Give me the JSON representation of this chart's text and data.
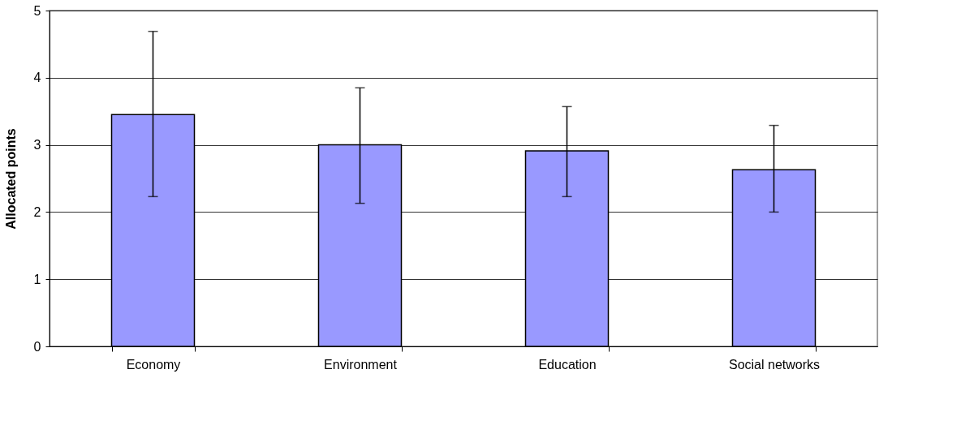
{
  "chart_data": {
    "type": "bar",
    "ylabel": "Allocated points",
    "categories": [
      "Economy",
      "Environment",
      "Education",
      "Social networks"
    ],
    "values": [
      3.45,
      3.0,
      2.91,
      2.63
    ],
    "errors": [
      [
        2.23,
        4.69
      ],
      [
        2.13,
        3.85
      ],
      [
        2.23,
        3.57
      ],
      [
        2.0,
        3.29
      ]
    ],
    "color": "#9999ff",
    "ylim": [
      0,
      5
    ],
    "yticks": [
      0,
      1,
      2,
      3,
      4,
      5
    ],
    "grid": "y"
  }
}
